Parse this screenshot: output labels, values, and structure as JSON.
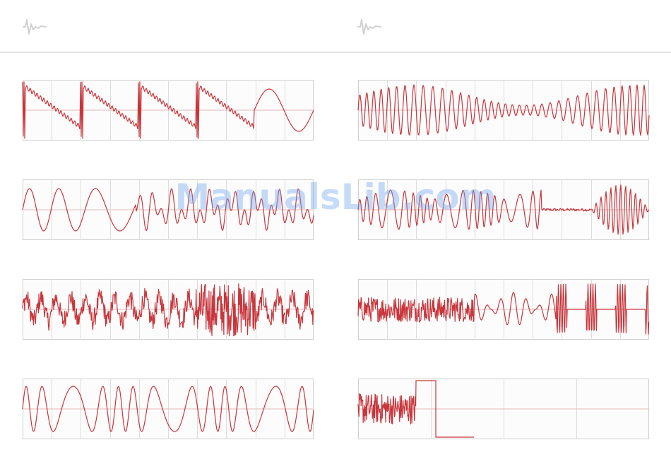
{
  "header": {
    "left_icon": "waveform-icon",
    "right_icon": "waveform-icon"
  },
  "watermark": {
    "text": "ManualsLib.com"
  },
  "style": {
    "wave_color": "#c8363c",
    "grid_color": "#dddddd",
    "frame_color": "#cfcfcf",
    "panel_bg": "#fcfcfc",
    "icon_color": "#d0d0d0"
  },
  "waveform_panels": [
    {
      "id": "left-1",
      "kind": "saw-bursts"
    },
    {
      "id": "right-1",
      "kind": "fm-dense"
    },
    {
      "id": "left-2",
      "kind": "smooth-mix"
    },
    {
      "id": "right-2",
      "kind": "chirp-bursts"
    },
    {
      "id": "left-3",
      "kind": "noisy-burst"
    },
    {
      "id": "right-3",
      "kind": "decay-bursts"
    },
    {
      "id": "left-4",
      "kind": "wobble"
    },
    {
      "id": "right-4",
      "kind": "noise-then-pulse"
    }
  ]
}
